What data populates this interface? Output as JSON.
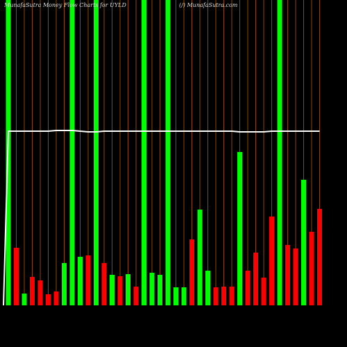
{
  "chart_data": {
    "type": "bar",
    "title": "MunafaSutra  Money Flow  Charts for UYLD",
    "subtitle": "(/) MunafaSutra.com",
    "values": [
      440,
      83,
      17,
      41,
      36,
      16,
      20,
      61,
      440,
      70,
      72,
      440,
      61,
      44,
      42,
      45,
      27,
      440,
      47,
      44,
      440,
      26,
      26,
      95,
      138,
      50,
      26,
      27,
      27,
      221,
      50,
      76,
      40,
      128,
      440,
      87,
      82,
      181,
      106,
      139
    ],
    "colors": [
      "#00ff00",
      "#ff0000",
      "#00ff00",
      "#ff0000",
      "#ff0000",
      "#ff0000",
      "#ff0000",
      "#00ff00",
      "#00ff00",
      "#00ff00",
      "#ff0000",
      "#00ff00",
      "#ff0000",
      "#00ff00",
      "#ff0000",
      "#00ff00",
      "#ff0000",
      "#00ff00",
      "#00ff00",
      "#00ff00",
      "#00ff00",
      "#00ff00",
      "#00ff00",
      "#ff0000",
      "#00ff00",
      "#00ff00",
      "#ff0000",
      "#ff0000",
      "#ff0000",
      "#00ff00",
      "#ff0000",
      "#ff0000",
      "#ff0000",
      "#ff0000",
      "#00ff00",
      "#ff0000",
      "#ff0000",
      "#00ff00",
      "#ff0000",
      "#ff0000"
    ],
    "line_values": [
      251,
      251,
      251,
      251,
      251,
      251,
      252,
      252,
      252,
      251,
      250,
      250,
      251,
      251,
      251,
      251,
      251,
      251,
      251,
      251,
      251,
      251,
      251,
      251,
      251,
      251,
      251,
      251,
      251,
      250,
      250,
      250,
      250,
      251,
      251,
      251,
      251,
      251,
      251,
      251
    ],
    "line_color": "#ffffff",
    "ylim": [
      0,
      440
    ]
  }
}
